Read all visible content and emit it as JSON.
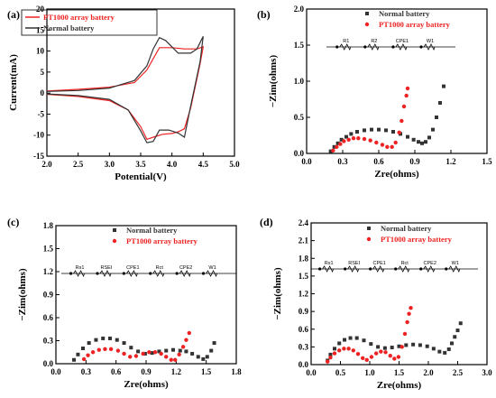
{
  "colors": {
    "normal": "#333333",
    "pt1000": "#ee2222",
    "axis": "#000000"
  },
  "chart_data": [
    {
      "panel": "(a)",
      "type": "line",
      "xlabel": "Potential(V)",
      "ylabel": "Current(mA)",
      "xlim": [
        2.0,
        5.0
      ],
      "ylim": [
        -15,
        20
      ],
      "xticks": [
        "2.0",
        "2.5",
        "3.0",
        "3.5",
        "4.0",
        "4.5",
        "5.0"
      ],
      "yticks": [
        "-15",
        "-10",
        "-5",
        "0",
        "5",
        "10",
        "15",
        "20"
      ],
      "legend": "top-left",
      "series": [
        {
          "name": "PT1000 array battery",
          "color": "pt1000",
          "marker": "line",
          "x": [
            2.0,
            2.5,
            3.0,
            3.4,
            3.6,
            3.8,
            4.0,
            4.2,
            4.4,
            4.5,
            4.45,
            4.3,
            4.2,
            4.1,
            4.0,
            3.85,
            3.7,
            3.6,
            3.5,
            3.3,
            3.0,
            2.5,
            2.0
          ],
          "y": [
            0.5,
            0.9,
            1.4,
            2.5,
            5.5,
            10.8,
            10.8,
            10.5,
            10.5,
            11.0,
            7.0,
            -3.5,
            -8.5,
            -9.2,
            -9.6,
            -9.8,
            -10.5,
            -11.0,
            -8.0,
            -4.0,
            -1.8,
            -0.8,
            -0.3
          ]
        },
        {
          "name": "Normal battery",
          "color": "normal",
          "marker": "line",
          "x": [
            2.0,
            2.5,
            3.0,
            3.4,
            3.6,
            3.7,
            3.8,
            3.9,
            4.1,
            4.3,
            4.4,
            4.5,
            4.45,
            4.3,
            4.2,
            4.1,
            3.95,
            3.8,
            3.7,
            3.6,
            3.5,
            3.3,
            3.0,
            2.5,
            2.0
          ],
          "y": [
            0.4,
            0.6,
            1.2,
            3.0,
            6.5,
            10.5,
            13.2,
            12.5,
            9.5,
            9.5,
            10.5,
            13.5,
            7.5,
            -3.0,
            -10.5,
            -9.5,
            -8.8,
            -8.8,
            -11.5,
            -11.8,
            -9.0,
            -4.0,
            -1.5,
            -0.6,
            -0.2
          ]
        }
      ]
    },
    {
      "panel": "(b)",
      "type": "scatter",
      "xlabel": "Zre(ohms)",
      "ylabel": "−Zim(ohms)",
      "xlim": [
        0.0,
        1.5
      ],
      "ylim": [
        0.0,
        2.0
      ],
      "xticks": [
        "0.0",
        "0.3",
        "0.6",
        "0.9",
        "1.2",
        "1.5"
      ],
      "yticks": [
        "0.0",
        "0.5",
        "1.0",
        "1.5",
        "2.0"
      ],
      "legend": "top-right",
      "circuit": [
        "R1",
        "R2",
        "CPE1",
        "W1"
      ],
      "series": [
        {
          "name": "Normal battery",
          "color": "normal",
          "marker": "square",
          "x": [
            0.2,
            0.23,
            0.26,
            0.29,
            0.33,
            0.37,
            0.42,
            0.48,
            0.54,
            0.6,
            0.66,
            0.72,
            0.78,
            0.84,
            0.89,
            0.93,
            0.96,
            0.99,
            1.02,
            1.05,
            1.08,
            1.11,
            1.14
          ],
          "y": [
            0.03,
            0.09,
            0.14,
            0.19,
            0.23,
            0.27,
            0.3,
            0.32,
            0.33,
            0.33,
            0.32,
            0.3,
            0.27,
            0.23,
            0.19,
            0.16,
            0.14,
            0.16,
            0.22,
            0.33,
            0.5,
            0.7,
            0.93
          ]
        },
        {
          "name": "PT1000 array battery",
          "color": "pt1000",
          "marker": "circle",
          "x": [
            0.22,
            0.25,
            0.28,
            0.31,
            0.35,
            0.39,
            0.43,
            0.48,
            0.53,
            0.58,
            0.63,
            0.67,
            0.71,
            0.74,
            0.77,
            0.79,
            0.81,
            0.83,
            0.84
          ],
          "y": [
            0.04,
            0.09,
            0.13,
            0.17,
            0.19,
            0.21,
            0.21,
            0.2,
            0.18,
            0.15,
            0.12,
            0.09,
            0.09,
            0.15,
            0.29,
            0.45,
            0.65,
            0.8,
            0.9
          ]
        }
      ]
    },
    {
      "panel": "(c)",
      "type": "scatter",
      "xlabel": "Zre(ohms)",
      "ylabel": "−Zim(ohms)",
      "xlim": [
        0.0,
        1.8
      ],
      "ylim": [
        0.0,
        1.8
      ],
      "xticks": [
        "0.0",
        "0.3",
        "0.6",
        "0.9",
        "1.2",
        "1.5",
        "1.8"
      ],
      "yticks": [
        "0.0",
        "0.3",
        "0.6",
        "0.9",
        "1.2",
        "1.5",
        "1.8"
      ],
      "legend": "top-right",
      "circuit": [
        "Rs1",
        "RSEI",
        "CPE1",
        "Rct",
        "CPE2",
        "W1"
      ],
      "series": [
        {
          "name": "Normal battery",
          "color": "normal",
          "marker": "square",
          "x": [
            0.18,
            0.22,
            0.27,
            0.33,
            0.4,
            0.47,
            0.54,
            0.61,
            0.68,
            0.75,
            0.82,
            0.89,
            0.96,
            1.03,
            1.1,
            1.17,
            1.24,
            1.3,
            1.36,
            1.42,
            1.47,
            1.51,
            1.55,
            1.58
          ],
          "y": [
            0.05,
            0.12,
            0.2,
            0.27,
            0.31,
            0.33,
            0.33,
            0.31,
            0.27,
            0.21,
            0.16,
            0.13,
            0.14,
            0.16,
            0.17,
            0.18,
            0.17,
            0.16,
            0.13,
            0.09,
            0.06,
            0.09,
            0.17,
            0.27
          ]
        },
        {
          "name": "PT1000 array battery",
          "color": "pt1000",
          "marker": "circle",
          "x": [
            0.28,
            0.32,
            0.37,
            0.43,
            0.49,
            0.55,
            0.62,
            0.68,
            0.74,
            0.8,
            0.87,
            0.93,
            0.99,
            1.05,
            1.1,
            1.15,
            1.19,
            1.23,
            1.27,
            1.3,
            1.33
          ],
          "y": [
            0.06,
            0.11,
            0.15,
            0.18,
            0.19,
            0.19,
            0.17,
            0.13,
            0.09,
            0.1,
            0.13,
            0.15,
            0.15,
            0.13,
            0.09,
            0.05,
            0.05,
            0.12,
            0.22,
            0.31,
            0.4
          ]
        }
      ]
    },
    {
      "panel": "(d)",
      "type": "scatter",
      "xlabel": "Zre(ohms)",
      "ylabel": "−Zim(ohms)",
      "xlim": [
        0.0,
        3.0
      ],
      "ylim": [
        0.0,
        2.4
      ],
      "xticks": [
        "0.0",
        "0.5",
        "1.0",
        "1.5",
        "2.0",
        "2.5",
        "3.0"
      ],
      "yticks": [
        "0.0",
        "0.3",
        "0.6",
        "0.9",
        "1.2",
        "1.5",
        "1.8",
        "2.1",
        "2.4"
      ],
      "legend": "top-right",
      "circuit": [
        "Rs1",
        "RSEI",
        "CPE1",
        "Rct",
        "CPE2",
        "W1"
      ],
      "series": [
        {
          "name": "Normal battery",
          "color": "normal",
          "marker": "square",
          "x": [
            0.28,
            0.33,
            0.4,
            0.48,
            0.57,
            0.67,
            0.78,
            0.9,
            1.02,
            1.14,
            1.26,
            1.38,
            1.5,
            1.62,
            1.74,
            1.86,
            1.98,
            2.09,
            2.19,
            2.28,
            2.35,
            2.4,
            2.45,
            2.5,
            2.55
          ],
          "y": [
            0.07,
            0.17,
            0.27,
            0.36,
            0.42,
            0.45,
            0.45,
            0.41,
            0.35,
            0.3,
            0.28,
            0.29,
            0.31,
            0.33,
            0.34,
            0.33,
            0.31,
            0.27,
            0.22,
            0.2,
            0.26,
            0.36,
            0.47,
            0.58,
            0.7
          ]
        },
        {
          "name": "PT1000 array battery",
          "color": "pt1000",
          "marker": "circle",
          "x": [
            0.28,
            0.33,
            0.4,
            0.48,
            0.56,
            0.64,
            0.72,
            0.8,
            0.88,
            0.95,
            1.03,
            1.11,
            1.19,
            1.27,
            1.35,
            1.42,
            1.49,
            1.55,
            1.6,
            1.64,
            1.67,
            1.7
          ],
          "y": [
            0.05,
            0.12,
            0.19,
            0.24,
            0.27,
            0.27,
            0.24,
            0.18,
            0.11,
            0.08,
            0.13,
            0.19,
            0.22,
            0.21,
            0.15,
            0.1,
            0.13,
            0.3,
            0.52,
            0.72,
            0.86,
            0.96
          ]
        }
      ]
    }
  ]
}
